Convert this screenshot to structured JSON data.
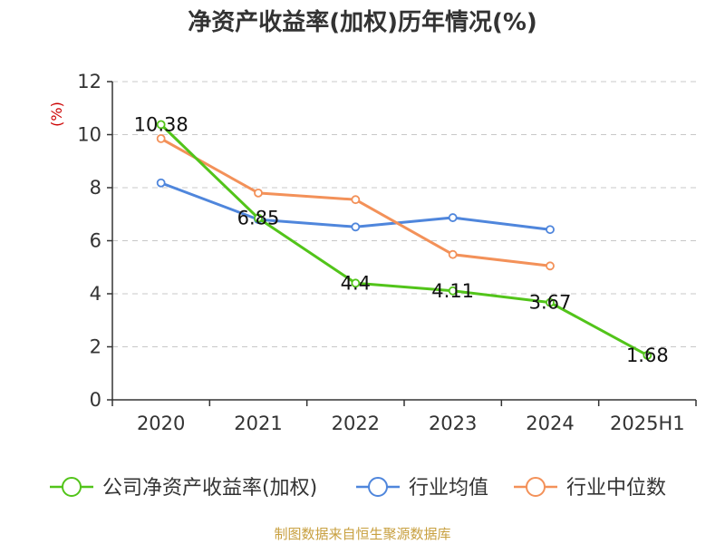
{
  "chart_data": {
    "type": "line",
    "title": "净资产收益率(加权)历年情况(%)",
    "ylabel": "(%)",
    "xlabel": "",
    "categories": [
      "2020",
      "2021",
      "2022",
      "2023",
      "2024",
      "2025H1"
    ],
    "ylim": [
      0,
      12
    ],
    "yticks": [
      "0",
      "2",
      "4",
      "6",
      "8",
      "10",
      "12"
    ],
    "grid": "horizontal dashed",
    "legend_position": "bottom",
    "series": [
      {
        "name": "公司净资产收益率(加权)",
        "color": "#52c41a",
        "values": [
          10.38,
          6.85,
          4.4,
          4.11,
          3.67,
          1.68
        ],
        "labels": [
          "10.38",
          "6.85",
          "4.4",
          "4.11",
          "3.67",
          "1.68"
        ]
      },
      {
        "name": "行业均值",
        "color": "#4f86dc",
        "values": [
          8.18,
          6.8,
          6.52,
          6.87,
          6.42,
          null
        ]
      },
      {
        "name": "行业中位数",
        "color": "#f39159",
        "values": [
          9.85,
          7.8,
          7.55,
          5.48,
          5.05,
          null
        ]
      }
    ]
  },
  "source_note": "制图数据来自恒生聚源数据库"
}
